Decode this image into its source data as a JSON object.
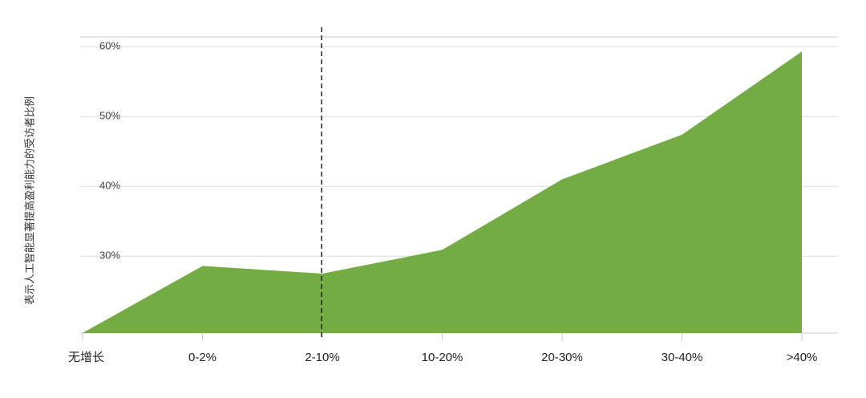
{
  "chart_data": {
    "type": "area",
    "y_label": "表示人工智能显著提高盈利能力的受访者比例",
    "categories": [
      "无增长",
      "0-2%",
      "2-10%",
      "10-20%",
      "20-30%",
      "30-40%",
      ">40%"
    ],
    "values": [
      19,
      28.6,
      27.5,
      30.9,
      41,
      47.4,
      59.3
    ],
    "color": "#72ac43",
    "ylim": [
      19,
      61.4
    ],
    "yticks": [
      {
        "value": 30,
        "label": "30%"
      },
      {
        "value": 40,
        "label": "40%"
      },
      {
        "value": 50,
        "label": "50%"
      },
      {
        "value": 60,
        "label": "60%"
      }
    ],
    "grid": true
  }
}
